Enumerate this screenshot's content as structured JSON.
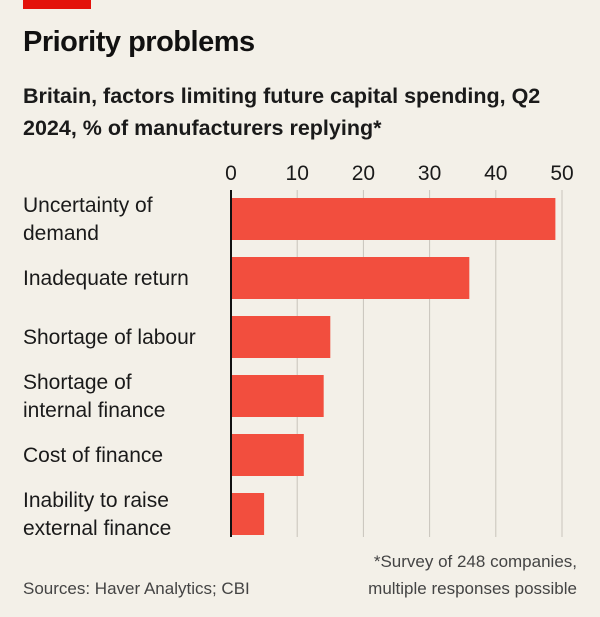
{
  "colors": {
    "accent": "#e3120b",
    "bar": "#f24e3e",
    "grid": "#c8c4bb",
    "axis": "#111111",
    "background": "#f3f0e8"
  },
  "header": {
    "title": "Priority problems",
    "subtitle": "Britain, factors limiting future capital spending, Q2 2024, % of manufacturers replying*"
  },
  "footer": {
    "source": "Sources: Haver Analytics; CBI",
    "footnote": "*Survey of 248 companies,\nmultiple responses possible"
  },
  "chart_data": {
    "type": "bar",
    "orientation": "horizontal",
    "title": "Priority problems",
    "subtitle": "Britain, factors limiting future capital spending, Q2 2024, % of manufacturers replying*",
    "categories": [
      [
        "Uncertainty of",
        "demand"
      ],
      [
        "Inadequate return"
      ],
      [
        "Shortage of labour"
      ],
      [
        "Shortage of",
        "internal finance"
      ],
      [
        "Cost of finance"
      ],
      [
        "Inability to raise",
        "external finance"
      ]
    ],
    "values": [
      49,
      36,
      15,
      14,
      11,
      5
    ],
    "xlim": [
      0,
      50
    ],
    "xticks": [
      0,
      10,
      20,
      30,
      40,
      50
    ],
    "xaxis_position": "top",
    "grid": true,
    "unit": "%"
  }
}
